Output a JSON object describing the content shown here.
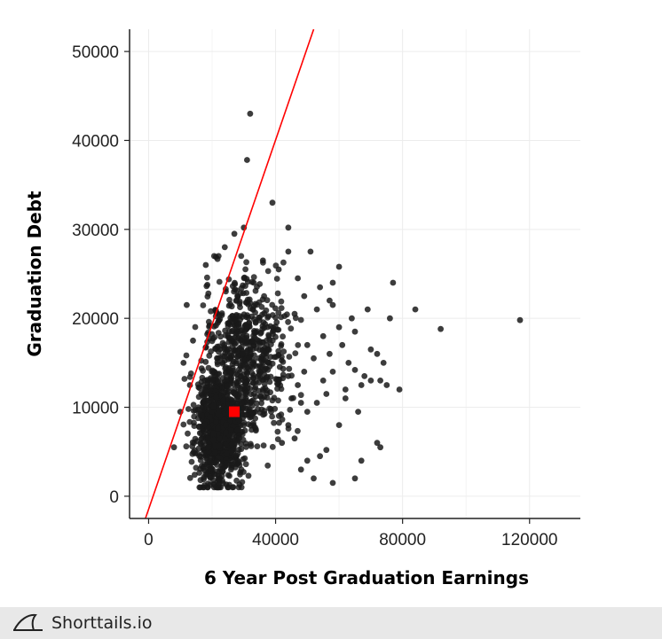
{
  "chart_data": {
    "type": "scatter",
    "title": "",
    "xlabel": "6 Year Post Graduation Earnings",
    "ylabel": "Graduation Debt",
    "xlim": [
      -6000,
      136000
    ],
    "ylim": [
      -2500,
      52500
    ],
    "xticks": [
      0,
      40000,
      80000,
      120000
    ],
    "xtick_labels": [
      "0",
      "40000",
      "80000",
      "120000"
    ],
    "yticks": [
      0,
      10000,
      20000,
      30000,
      40000,
      50000
    ],
    "ytick_labels": [
      "0",
      "10000",
      "20000",
      "30000",
      "40000",
      "50000"
    ],
    "grid": true,
    "point_color": "#1a1a1a",
    "highlight_color": "#ff0000",
    "outliers": [
      [
        32000,
        43000
      ],
      [
        31000,
        37800
      ],
      [
        39000,
        33000
      ],
      [
        44000,
        30200
      ],
      [
        30000,
        30200
      ],
      [
        44000,
        27500
      ],
      [
        51000,
        27500
      ],
      [
        84000,
        21000
      ],
      [
        117000,
        19800
      ],
      [
        92000,
        18800
      ],
      [
        77000,
        24000
      ],
      [
        76000,
        20000
      ],
      [
        69000,
        21000
      ],
      [
        64000,
        20000
      ],
      [
        60000,
        25800
      ],
      [
        58000,
        24000
      ],
      [
        57000,
        22000
      ],
      [
        55000,
        18000
      ],
      [
        60000,
        19000
      ],
      [
        65000,
        18500
      ],
      [
        72000,
        16000
      ],
      [
        74000,
        15000
      ],
      [
        70000,
        13000
      ],
      [
        73000,
        13000
      ],
      [
        79000,
        12000
      ],
      [
        75000,
        12500
      ],
      [
        68000,
        13500
      ],
      [
        65000,
        14200
      ],
      [
        67000,
        12500
      ],
      [
        62000,
        12000
      ],
      [
        58000,
        14000
      ],
      [
        55000,
        13000
      ],
      [
        53000,
        10500
      ],
      [
        50000,
        9500
      ],
      [
        48000,
        10500
      ],
      [
        45000,
        11000
      ],
      [
        52000,
        2000
      ],
      [
        58000,
        1500
      ],
      [
        56000,
        5200
      ],
      [
        65000,
        2000
      ],
      [
        67000,
        4000
      ],
      [
        72000,
        6000
      ],
      [
        73000,
        5500
      ],
      [
        50000,
        4000
      ],
      [
        54000,
        4500
      ],
      [
        46000,
        6500
      ],
      [
        44000,
        8000
      ],
      [
        42000,
        6000
      ],
      [
        48000,
        3000
      ],
      [
        60000,
        8000
      ],
      [
        62000,
        11000
      ],
      [
        66000,
        9500
      ],
      [
        56000,
        11500
      ],
      [
        70000,
        16500
      ],
      [
        63000,
        15000
      ],
      [
        8000,
        5500
      ],
      [
        11000,
        15000
      ],
      [
        12000,
        21500
      ],
      [
        13000,
        12500
      ],
      [
        10000,
        9500
      ],
      [
        14000,
        17500
      ],
      [
        16000,
        4500
      ],
      [
        18000,
        26000
      ],
      [
        24000,
        28000
      ],
      [
        27000,
        29500
      ],
      [
        36000,
        26500
      ],
      [
        41000,
        25500
      ],
      [
        47000,
        24500
      ],
      [
        54000,
        23500
      ],
      [
        49000,
        22500
      ],
      [
        53000,
        21000
      ],
      [
        46000,
        20500
      ],
      [
        58000,
        21500
      ],
      [
        61000,
        17000
      ],
      [
        57000,
        16000
      ],
      [
        52000,
        15500
      ],
      [
        49000,
        14000
      ],
      [
        47000,
        12500
      ],
      [
        44000,
        13500
      ],
      [
        50000,
        17000
      ]
    ],
    "cluster": {
      "count": 1500,
      "x_range": [
        11000,
        48000
      ],
      "y_range": [
        1000,
        27000
      ],
      "center": [
        28000,
        12000
      ]
    },
    "highlight_point": [
      27000,
      9500
    ],
    "reference_line": [
      [
        -1000,
        -2500
      ],
      [
        52000,
        52500
      ]
    ]
  },
  "footer": {
    "brand": "Shorttails.io",
    "logo_icon": "shark-fin-icon"
  }
}
